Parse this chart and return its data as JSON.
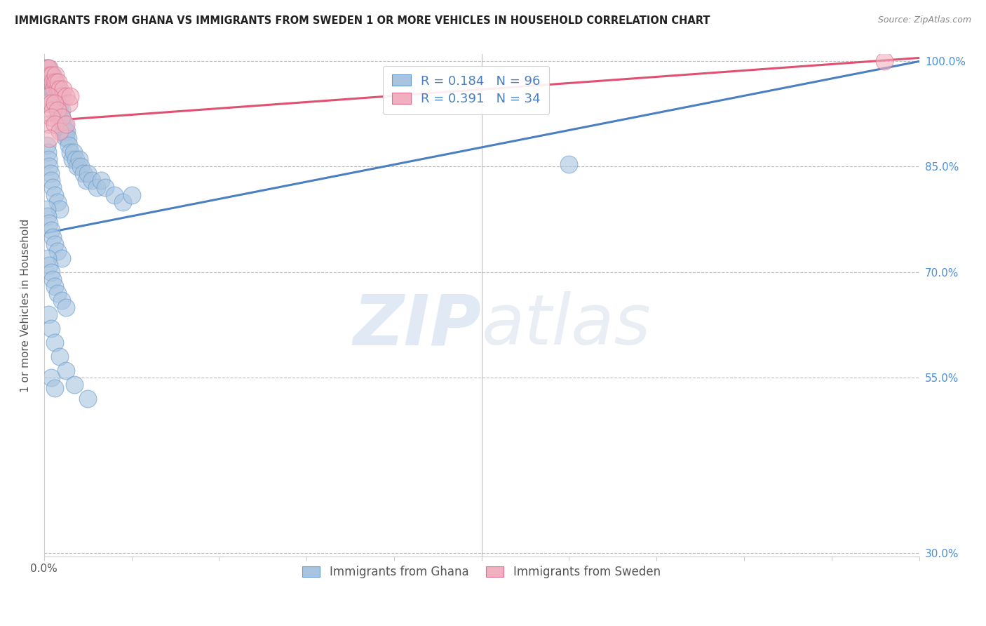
{
  "title": "IMMIGRANTS FROM GHANA VS IMMIGRANTS FROM SWEDEN 1 OR MORE VEHICLES IN HOUSEHOLD CORRELATION CHART",
  "source": "Source: ZipAtlas.com",
  "ylabel": "1 or more Vehicles in Household",
  "ghana_color": "#a8c4e0",
  "sweden_color": "#f0b0c0",
  "ghana_edge_color": "#6699cc",
  "sweden_edge_color": "#dd7090",
  "ghana_line_color": "#4a7fc1",
  "sweden_line_color": "#e05070",
  "ghana_R": 0.184,
  "ghana_N": 96,
  "sweden_R": 0.391,
  "sweden_N": 34,
  "legend_ghana": "Immigrants from Ghana",
  "legend_sweden": "Immigrants from Sweden",
  "watermark_zip": "ZIP",
  "watermark_atlas": "atlas",
  "ghana_x": [
    0.002,
    0.003,
    0.004,
    0.004,
    0.005,
    0.005,
    0.006,
    0.006,
    0.007,
    0.007,
    0.008,
    0.008,
    0.009,
    0.009,
    0.01,
    0.01,
    0.01,
    0.011,
    0.011,
    0.012,
    0.012,
    0.013,
    0.013,
    0.014,
    0.014,
    0.015,
    0.015,
    0.016,
    0.016,
    0.017,
    0.018,
    0.018,
    0.019,
    0.02,
    0.02,
    0.021,
    0.022,
    0.023,
    0.024,
    0.025,
    0.026,
    0.027,
    0.028,
    0.03,
    0.032,
    0.034,
    0.036,
    0.038,
    0.04,
    0.042,
    0.045,
    0.048,
    0.05,
    0.055,
    0.06,
    0.065,
    0.07,
    0.08,
    0.09,
    0.1,
    0.003,
    0.004,
    0.005,
    0.006,
    0.007,
    0.008,
    0.01,
    0.012,
    0.015,
    0.018,
    0.003,
    0.004,
    0.006,
    0.008,
    0.01,
    0.012,
    0.015,
    0.02,
    0.004,
    0.006,
    0.008,
    0.01,
    0.012,
    0.015,
    0.02,
    0.025,
    0.005,
    0.008,
    0.012,
    0.018,
    0.025,
    0.035,
    0.05,
    0.008,
    0.012,
    0.6
  ],
  "ghana_y": [
    0.99,
    0.98,
    0.97,
    0.98,
    0.97,
    0.99,
    0.98,
    0.97,
    0.96,
    0.97,
    0.98,
    0.96,
    0.97,
    0.96,
    0.98,
    0.97,
    0.96,
    0.95,
    0.96,
    0.97,
    0.96,
    0.95,
    0.94,
    0.96,
    0.95,
    0.94,
    0.93,
    0.95,
    0.94,
    0.93,
    0.92,
    0.93,
    0.92,
    0.93,
    0.92,
    0.91,
    0.9,
    0.91,
    0.9,
    0.89,
    0.9,
    0.89,
    0.88,
    0.87,
    0.86,
    0.87,
    0.86,
    0.85,
    0.86,
    0.85,
    0.84,
    0.83,
    0.84,
    0.83,
    0.82,
    0.83,
    0.82,
    0.81,
    0.8,
    0.81,
    0.88,
    0.87,
    0.86,
    0.85,
    0.84,
    0.83,
    0.82,
    0.81,
    0.8,
    0.79,
    0.79,
    0.78,
    0.77,
    0.76,
    0.75,
    0.74,
    0.73,
    0.72,
    0.72,
    0.71,
    0.7,
    0.69,
    0.68,
    0.67,
    0.66,
    0.65,
    0.64,
    0.62,
    0.6,
    0.58,
    0.56,
    0.54,
    0.52,
    0.55,
    0.535,
    0.853
  ],
  "sweden_x": [
    0.003,
    0.004,
    0.005,
    0.006,
    0.007,
    0.008,
    0.009,
    0.01,
    0.011,
    0.012,
    0.013,
    0.014,
    0.015,
    0.016,
    0.018,
    0.02,
    0.022,
    0.025,
    0.028,
    0.03,
    0.004,
    0.006,
    0.008,
    0.01,
    0.012,
    0.015,
    0.02,
    0.005,
    0.008,
    0.012,
    0.018,
    0.025,
    0.006,
    0.96
  ],
  "sweden_y": [
    0.99,
    0.99,
    0.98,
    0.99,
    0.98,
    0.97,
    0.98,
    0.97,
    0.96,
    0.97,
    0.98,
    0.97,
    0.96,
    0.97,
    0.96,
    0.95,
    0.96,
    0.95,
    0.94,
    0.95,
    0.94,
    0.95,
    0.94,
    0.93,
    0.94,
    0.93,
    0.92,
    0.91,
    0.92,
    0.91,
    0.9,
    0.91,
    0.89,
    1.0
  ],
  "xlim": [
    0.0,
    1.0
  ],
  "ylim": [
    0.295,
    1.01
  ],
  "yticks": [
    0.3,
    0.55,
    0.7,
    0.85,
    1.0
  ],
  "ytick_labels": [
    "30.0%",
    "55.0%",
    "70.0%",
    "85.0%",
    "100.0%"
  ],
  "xtick_label_start": "0.0%",
  "ghana_line_x0": 0.0,
  "ghana_line_y0": 0.755,
  "ghana_line_x1": 1.0,
  "ghana_line_y1": 1.0,
  "sweden_line_x0": 0.0,
  "sweden_line_y0": 0.915,
  "sweden_line_x1": 1.0,
  "sweden_line_y1": 1.005
}
